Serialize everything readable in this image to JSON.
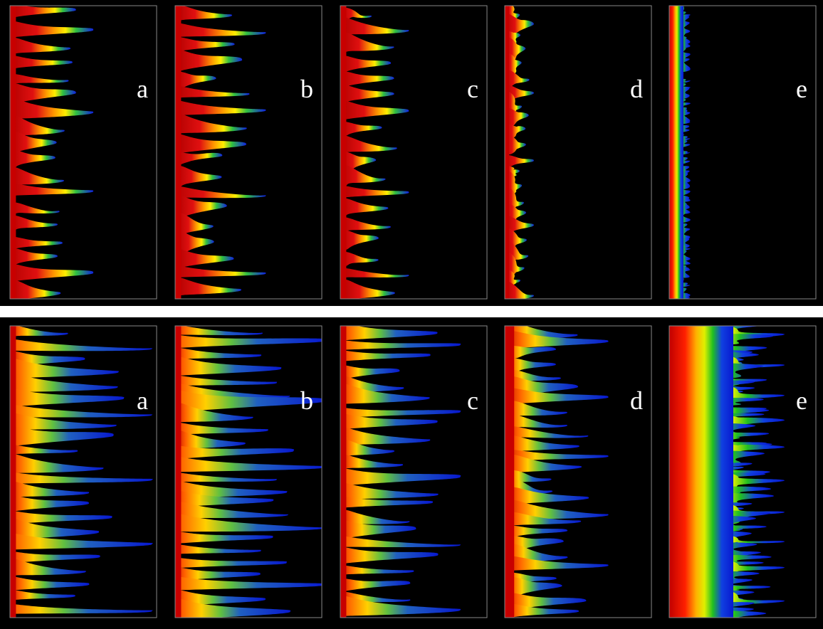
{
  "rows": [
    {
      "panels": [
        {
          "label": "a"
        },
        {
          "label": "b"
        },
        {
          "label": "c"
        },
        {
          "label": "d"
        },
        {
          "label": "e"
        }
      ]
    },
    {
      "panels": [
        {
          "label": "a"
        },
        {
          "label": "b"
        },
        {
          "label": "c"
        },
        {
          "label": "d"
        },
        {
          "label": "e"
        }
      ]
    }
  ]
}
